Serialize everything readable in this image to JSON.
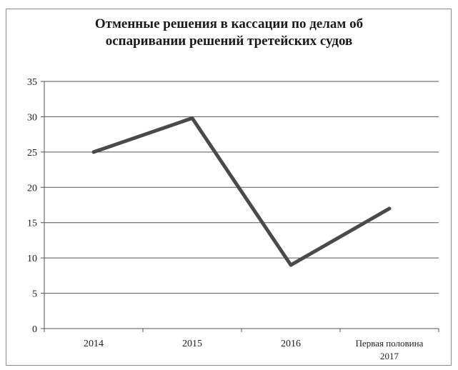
{
  "chart_data": {
    "type": "line",
    "title_lines": [
      "Отменные решения в кассации по делам об",
      "оспаривании решений третейских судов"
    ],
    "xlabel": "",
    "ylabel": "",
    "categories": [
      [
        "2014"
      ],
      [
        "2015"
      ],
      [
        "2016"
      ],
      [
        "Первая половина",
        "2017"
      ]
    ],
    "series": [
      {
        "values": [
          25,
          29.8,
          9,
          17
        ]
      }
    ],
    "ylim": [
      0,
      35
    ],
    "yticks": [
      0,
      5,
      10,
      15,
      20,
      25,
      30,
      35
    ],
    "grid": true,
    "legend": "none",
    "line_color": "#4a4a4a",
    "grid_color": "#555555"
  }
}
